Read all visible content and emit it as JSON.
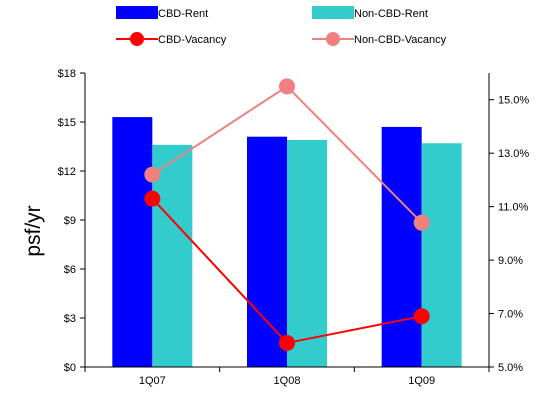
{
  "chart_data": {
    "type": "bar",
    "categories": [
      "1Q07",
      "1Q08",
      "1Q09"
    ],
    "series": [
      {
        "name": "CBD-Rent",
        "kind": "bar",
        "axis": "left",
        "color": "#0000ff",
        "values": [
          15.3,
          14.1,
          14.7
        ]
      },
      {
        "name": "Non-CBD-Rent",
        "kind": "bar",
        "axis": "left",
        "color": "#33cccc",
        "values": [
          13.6,
          13.9,
          13.7
        ]
      },
      {
        "name": "CBD-Vacancy",
        "kind": "line",
        "axis": "right",
        "color": "#ff0000",
        "values": [
          11.3,
          5.9,
          6.9
        ]
      },
      {
        "name": "Non-CBD-Vacancy",
        "kind": "line",
        "axis": "right",
        "color": "#f08080",
        "values": [
          12.2,
          15.5,
          10.4
        ]
      }
    ],
    "ylabel": "psf/yr",
    "ylim": [
      0,
      18
    ],
    "yticks": [
      "$0",
      "$3",
      "$6",
      "$9",
      "$12",
      "$15",
      "$18"
    ],
    "y2lim": [
      5,
      16
    ],
    "y2ticks": [
      "5.0%",
      "7.0%",
      "9.0%",
      "11.0%",
      "13.0%",
      "15.0%"
    ],
    "legend_position": "top",
    "grid": false
  }
}
